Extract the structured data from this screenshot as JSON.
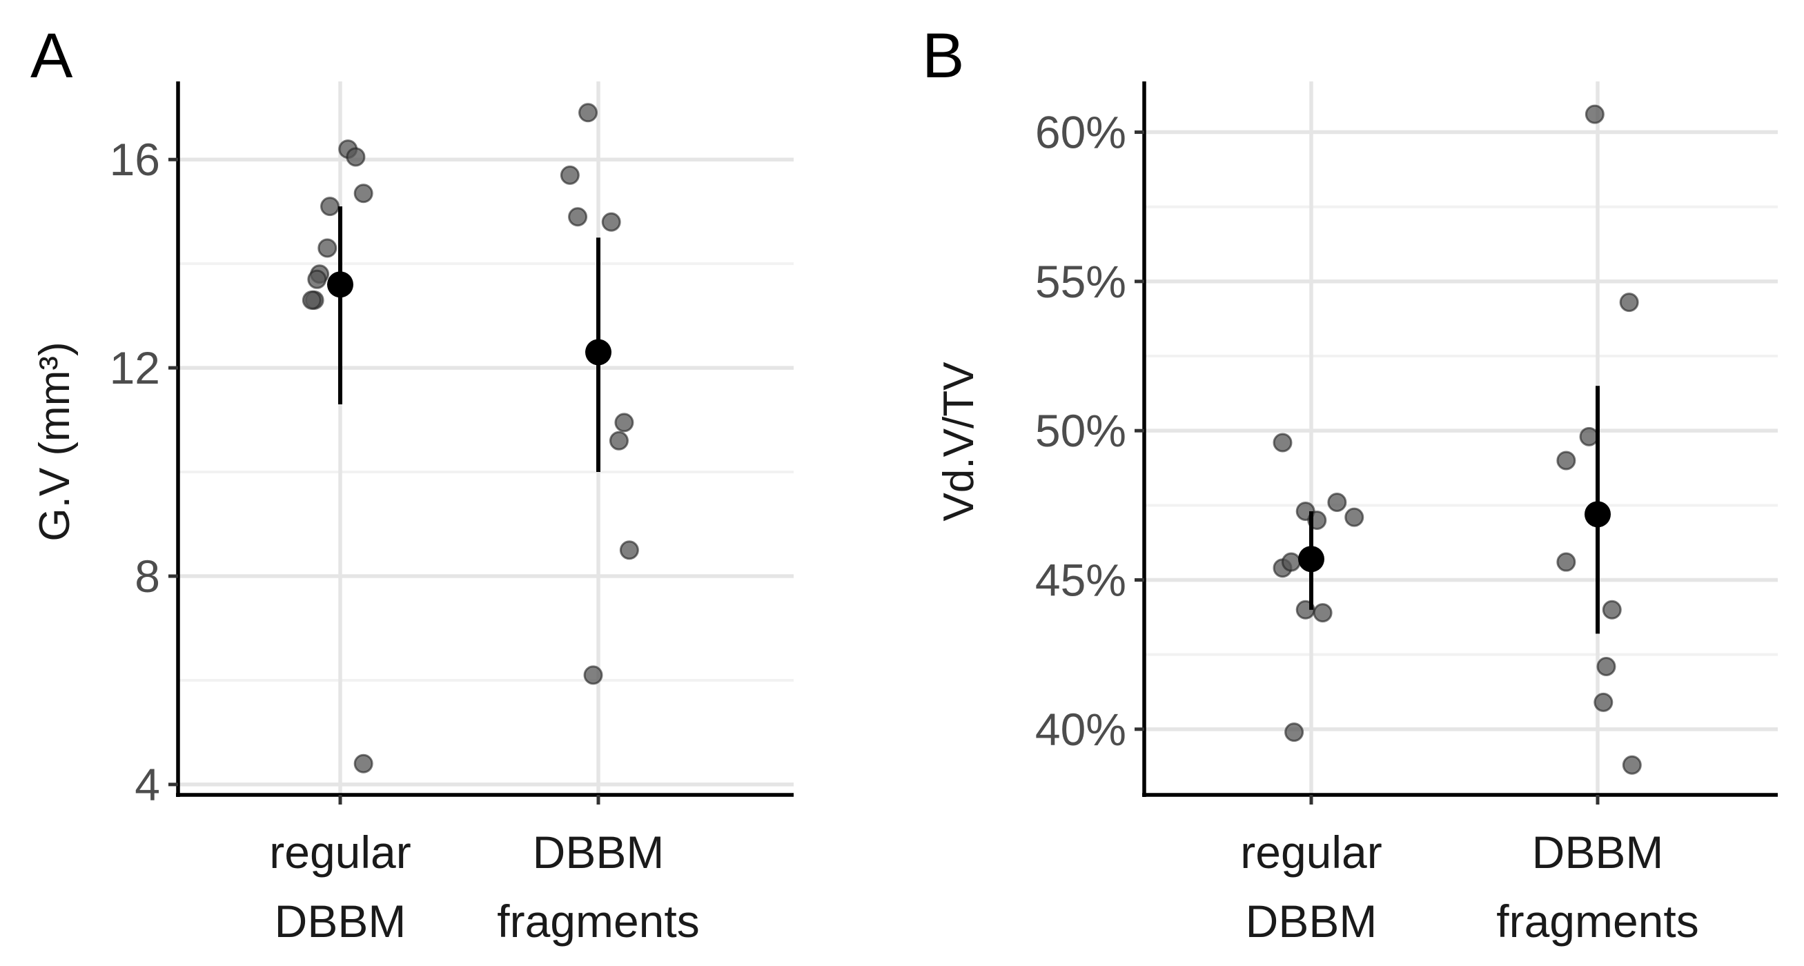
{
  "chart_data": [
    {
      "panel": "A",
      "type": "scatter",
      "ylabel": "G.V (mm³)",
      "xlabel": "",
      "categories": [
        "regular\nDBBM",
        "DBBM\nfragments"
      ],
      "ylim": [
        3.8,
        17.5
      ],
      "yticks": [
        4,
        8,
        12,
        16
      ],
      "ytick_labels": [
        "4",
        "8",
        "12",
        "16"
      ],
      "minor_ticks": [
        6,
        10,
        14
      ],
      "grid": true,
      "points": [
        {
          "group": 0,
          "jitter": -0.1,
          "value": 13.3
        },
        {
          "group": 0,
          "jitter": -0.11,
          "value": 13.3
        },
        {
          "group": 0,
          "jitter": -0.08,
          "value": 13.8
        },
        {
          "group": 0,
          "jitter": -0.09,
          "value": 13.7
        },
        {
          "group": 0,
          "jitter": -0.05,
          "value": 14.3
        },
        {
          "group": 0,
          "jitter": -0.04,
          "value": 15.1
        },
        {
          "group": 0,
          "jitter": 0.03,
          "value": 16.2
        },
        {
          "group": 0,
          "jitter": 0.06,
          "value": 16.05
        },
        {
          "group": 0,
          "jitter": 0.09,
          "value": 15.35
        },
        {
          "group": 0,
          "jitter": 0.09,
          "value": 4.4
        },
        {
          "group": 1,
          "jitter": -0.04,
          "value": 16.9
        },
        {
          "group": 1,
          "jitter": -0.11,
          "value": 15.7
        },
        {
          "group": 1,
          "jitter": -0.08,
          "value": 14.9
        },
        {
          "group": 1,
          "jitter": 0.05,
          "value": 14.8
        },
        {
          "group": 1,
          "jitter": 0.1,
          "value": 10.95
        },
        {
          "group": 1,
          "jitter": 0.08,
          "value": 10.6
        },
        {
          "group": 1,
          "jitter": 0.12,
          "value": 8.5
        },
        {
          "group": 1,
          "jitter": -0.02,
          "value": 6.1
        }
      ],
      "summary": [
        {
          "group": 0,
          "mean": 13.6,
          "lower": 11.3,
          "upper": 15.1
        },
        {
          "group": 1,
          "mean": 12.3,
          "lower": 10.0,
          "upper": 14.5
        }
      ]
    },
    {
      "panel": "B",
      "type": "scatter",
      "ylabel": "Vd.V/TV",
      "xlabel": "",
      "categories": [
        "regular\nDBBM",
        "DBBM\nfragments"
      ],
      "ylim": [
        37.8,
        61.7
      ],
      "yticks": [
        40,
        45,
        50,
        55,
        60
      ],
      "ytick_labels": [
        "40%",
        "45%",
        "50%",
        "55%",
        "60%"
      ],
      "minor_ticks": [
        42.5,
        47.5,
        52.5,
        57.5
      ],
      "grid": true,
      "points": [
        {
          "group": 0,
          "jitter": -0.1,
          "value": 49.6
        },
        {
          "group": 0,
          "jitter": -0.02,
          "value": 47.3
        },
        {
          "group": 0,
          "jitter": 0.02,
          "value": 47.0
        },
        {
          "group": 0,
          "jitter": 0.09,
          "value": 47.6
        },
        {
          "group": 0,
          "jitter": 0.15,
          "value": 47.1
        },
        {
          "group": 0,
          "jitter": -0.1,
          "value": 45.4
        },
        {
          "group": 0,
          "jitter": -0.07,
          "value": 45.6
        },
        {
          "group": 0,
          "jitter": -0.02,
          "value": 44.0
        },
        {
          "group": 0,
          "jitter": 0.04,
          "value": 43.9
        },
        {
          "group": 0,
          "jitter": -0.06,
          "value": 39.9
        },
        {
          "group": 1,
          "jitter": -0.01,
          "value": 60.6
        },
        {
          "group": 1,
          "jitter": 0.11,
          "value": 54.3
        },
        {
          "group": 1,
          "jitter": -0.03,
          "value": 49.8
        },
        {
          "group": 1,
          "jitter": -0.11,
          "value": 49.0
        },
        {
          "group": 1,
          "jitter": -0.11,
          "value": 45.6
        },
        {
          "group": 1,
          "jitter": 0.05,
          "value": 44.0
        },
        {
          "group": 1,
          "jitter": 0.03,
          "value": 42.1
        },
        {
          "group": 1,
          "jitter": 0.02,
          "value": 40.9
        },
        {
          "group": 1,
          "jitter": 0.12,
          "value": 38.8
        }
      ],
      "summary": [
        {
          "group": 0,
          "mean": 45.7,
          "lower": 44.0,
          "upper": 47.3
        },
        {
          "group": 1,
          "mean": 47.2,
          "lower": 43.2,
          "upper": 51.5
        }
      ]
    }
  ]
}
